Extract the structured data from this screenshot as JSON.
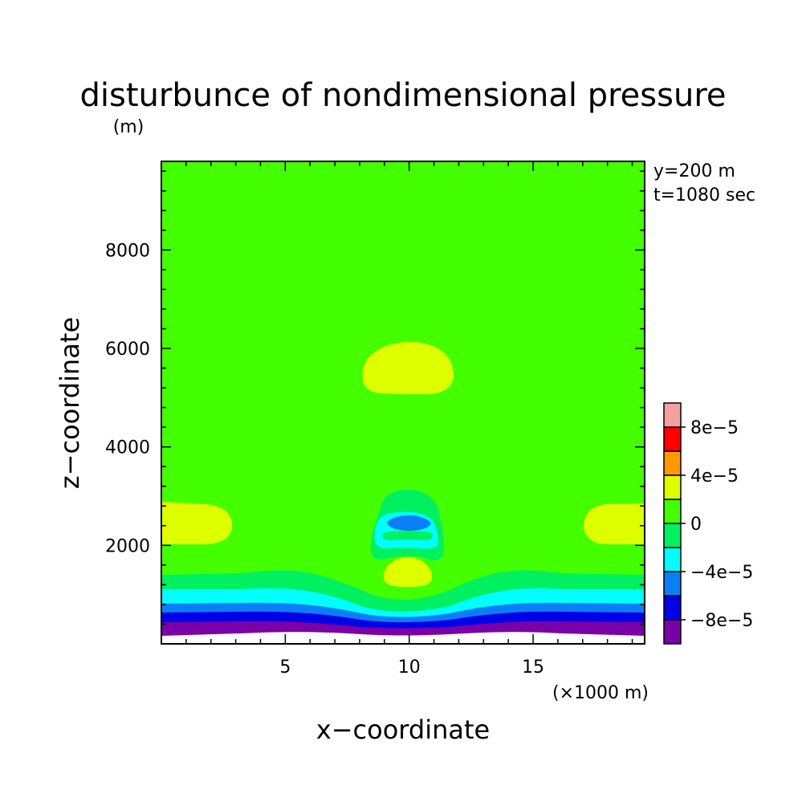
{
  "chart_data": {
    "type": "contour",
    "title": "disturbunce of nondimensional pressure",
    "ylabel_unit": "(m)",
    "xlabel": "x−coordinate",
    "ylabel": "z−coordinate",
    "xunit": "(×1000 m)",
    "annotation_lines": [
      "y=200 m",
      "t=1080 sec"
    ],
    "xlim": [
      0,
      19.5
    ],
    "ylim": [
      0,
      9800
    ],
    "xticks": [
      5,
      10,
      15
    ],
    "xtick_labels": [
      "5",
      "10",
      "15"
    ],
    "yticks": [
      2000,
      4000,
      6000,
      8000
    ],
    "ytick_labels": [
      "2000",
      "4000",
      "6000",
      "8000"
    ],
    "background_level_color": "#44ff00",
    "colorbar": {
      "levels": [
        "<-8e-5",
        "-8e-5",
        "-6e-5",
        "-4e-5",
        "-2e-5",
        "0",
        "2e-5",
        "4e-5",
        "6e-5",
        "8e-5"
      ],
      "colors": [
        "#7a00a8",
        "#0000e6",
        "#0a7ff5",
        "#00ffff",
        "#00f060",
        "#44ff00",
        "#ddff00",
        "#ff9900",
        "#ff0000",
        "#f5a0a0"
      ],
      "tick_labels": [
        "8e−5",
        "4e−5",
        "0",
        "−4e−5",
        "−8e−5"
      ]
    }
  }
}
